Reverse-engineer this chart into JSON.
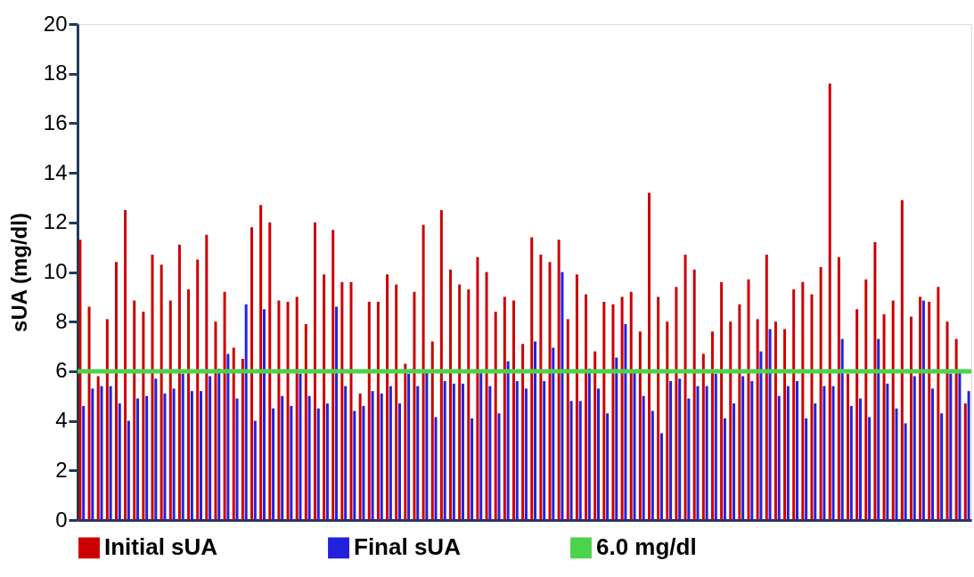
{
  "chart_data": {
    "type": "bar",
    "ylabel": "sUA (mg/dl)",
    "categories": [
      null,
      null,
      null,
      null,
      null,
      null,
      null,
      null,
      null,
      null,
      null,
      null,
      null,
      null,
      null,
      null,
      null,
      null,
      null,
      null,
      null,
      null,
      null,
      null,
      null,
      null,
      null,
      null,
      null,
      null,
      null,
      null,
      null,
      null,
      null,
      null,
      null,
      null,
      null,
      null,
      null,
      null,
      null,
      null,
      null,
      null,
      null,
      null,
      null,
      null,
      null,
      null,
      null,
      null,
      null,
      null,
      null,
      null,
      null,
      null,
      null,
      null,
      null,
      null,
      null,
      null,
      null,
      null,
      null,
      null,
      null,
      null,
      null,
      null,
      null,
      null,
      null,
      null,
      null,
      null,
      null,
      null,
      null,
      null,
      null,
      null,
      null,
      null,
      null,
      null,
      null,
      null,
      null,
      null,
      null,
      null,
      null,
      null,
      null
    ],
    "series": [
      {
        "name": "Initial sUA",
        "color": "#cc0000",
        "values": [
          11.3,
          8.6,
          5.8,
          8.1,
          10.4,
          12.5,
          8.85,
          8.4,
          10.7,
          10.3,
          8.85,
          11.1,
          9.3,
          10.5,
          11.5,
          8.0,
          9.2,
          6.95,
          6.5,
          11.8,
          12.7,
          12.0,
          8.85,
          8.8,
          9.0,
          7.9,
          12.0,
          9.9,
          11.7,
          9.6,
          9.6,
          5.1,
          8.8,
          8.8,
          9.9,
          9.5,
          6.3,
          9.2,
          11.9,
          7.2,
          12.5,
          10.1,
          9.5,
          9.3,
          10.6,
          10.0,
          8.4,
          9.0,
          8.85,
          7.1,
          11.4,
          10.7,
          10.4,
          11.3,
          8.1,
          9.9,
          9.1,
          6.8,
          8.8,
          8.7,
          9.0,
          9.2,
          7.6,
          13.2,
          9.0,
          8.0,
          9.4,
          10.7,
          10.1,
          6.7,
          7.6,
          9.6,
          8.0,
          8.7,
          9.7,
          8.1,
          10.7,
          8.0,
          7.7,
          9.3,
          9.6,
          9.1,
          10.2,
          17.6,
          10.6,
          5.9,
          8.5,
          9.7,
          11.2,
          8.3,
          8.85,
          12.9,
          8.2,
          9.0,
          8.8,
          9.4,
          8.0,
          7.3,
          4.7
        ]
      },
      {
        "name": "Final sUA",
        "color": "#2222dd",
        "values": [
          4.6,
          5.3,
          5.4,
          5.4,
          4.7,
          4.0,
          4.9,
          5.0,
          5.7,
          5.1,
          5.3,
          5.9,
          5.2,
          5.2,
          5.8,
          6.1,
          6.7,
          4.9,
          8.7,
          4.0,
          8.5,
          4.5,
          5.0,
          4.6,
          5.9,
          5.0,
          4.5,
          4.7,
          8.6,
          5.4,
          4.4,
          4.6,
          5.2,
          5.1,
          5.4,
          4.7,
          5.9,
          5.4,
          6.0,
          4.15,
          5.6,
          5.5,
          5.5,
          4.1,
          6.0,
          5.4,
          4.3,
          6.4,
          5.6,
          5.3,
          7.2,
          5.6,
          6.95,
          10.0,
          4.8,
          4.8,
          6.1,
          5.3,
          4.3,
          6.55,
          7.9,
          6.0,
          5.0,
          4.4,
          3.5,
          5.6,
          5.7,
          4.9,
          5.4,
          5.4,
          5.9,
          4.1,
          4.7,
          5.8,
          5.6,
          6.8,
          7.7,
          5.0,
          5.4,
          5.6,
          4.1,
          4.7,
          5.4,
          5.4,
          7.3,
          4.6,
          4.9,
          4.15,
          7.3,
          5.5,
          4.5,
          3.9,
          5.8,
          8.85,
          5.3,
          4.3,
          5.9,
          6.0,
          5.2
        ]
      }
    ],
    "ylim": [
      0,
      20
    ],
    "yticks": [
      0,
      2,
      4,
      6,
      8,
      10,
      12,
      14,
      16,
      18,
      20
    ],
    "ref_lines": [
      {
        "axis": "y",
        "value": 6,
        "label": "6.0 mg/dl",
        "color": "#4cd34c"
      }
    ],
    "tick_labels": "y",
    "legend": "bottom"
  }
}
